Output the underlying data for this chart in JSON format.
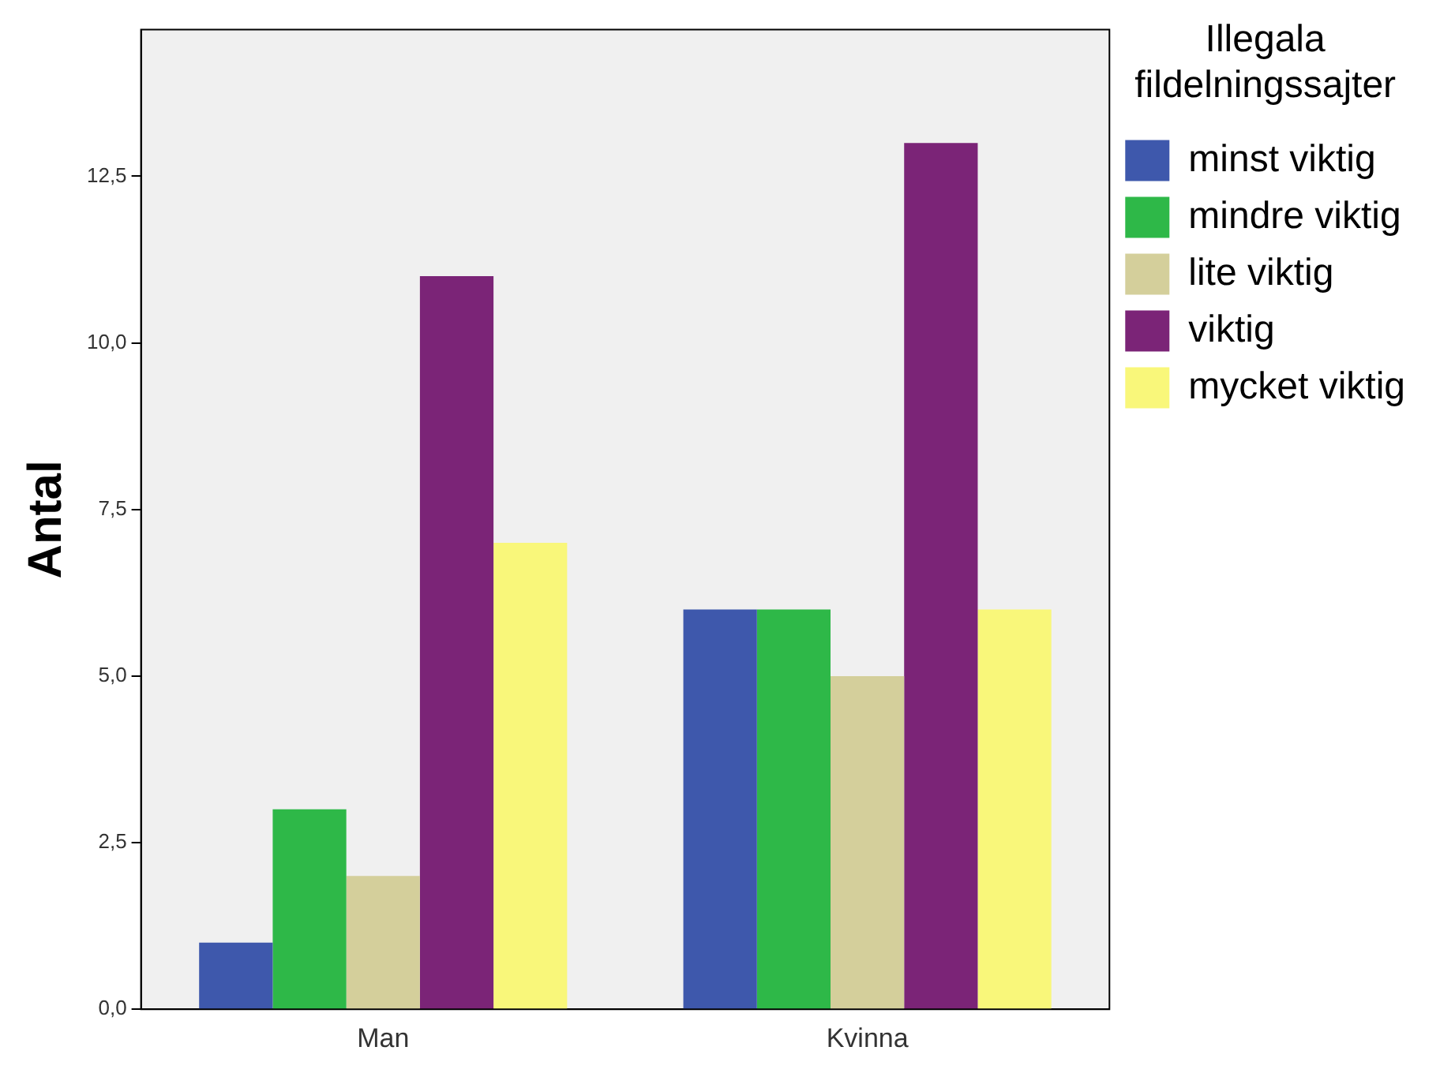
{
  "chart_data": {
    "type": "bar",
    "ylabel": "Antal",
    "legend_title": "Illegala fildelningssajter",
    "legend": "top right",
    "grid": false,
    "categories": [
      "Man",
      "Kvinna"
    ],
    "series": [
      {
        "name": "minst viktig",
        "color": "#3e58ac",
        "values": [
          1,
          6
        ]
      },
      {
        "name": "mindre viktig",
        "color": "#2eb848",
        "values": [
          3,
          6
        ]
      },
      {
        "name": "lite viktig",
        "color": "#d4cf9b",
        "values": [
          2,
          5
        ]
      },
      {
        "name": "viktig",
        "color": "#7b2477",
        "values": [
          11,
          13
        ]
      },
      {
        "name": "mycket viktig",
        "color": "#f9f77a",
        "values": [
          7,
          6
        ]
      }
    ],
    "ylim": [
      0,
      14.7
    ],
    "yticks": [
      {
        "value": 0,
        "label": "0,0"
      },
      {
        "value": 2.5,
        "label": "2,5"
      },
      {
        "value": 5,
        "label": "5,0"
      },
      {
        "value": 7.5,
        "label": "7,5"
      },
      {
        "value": 10,
        "label": "10,0"
      },
      {
        "value": 12.5,
        "label": "12,5"
      }
    ]
  }
}
